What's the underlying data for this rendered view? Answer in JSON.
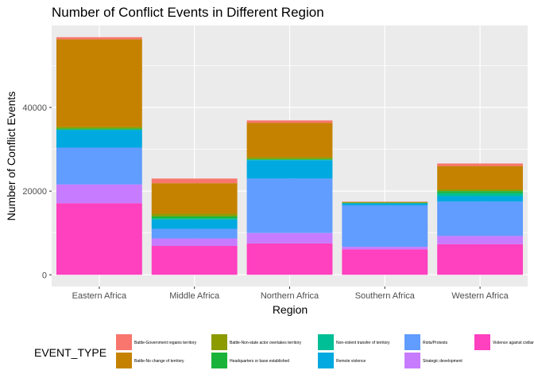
{
  "chart_data": {
    "type": "bar",
    "stacked": true,
    "title": "Number of Conflict Events in Different Region",
    "xlabel": "Region",
    "ylabel": "Number of Conflict Events",
    "ylim": [
      0,
      60000
    ],
    "yticks": [
      0,
      20000,
      40000
    ],
    "grid": true,
    "legend_position": "bottom",
    "legend_title": "EVENT_TYPE",
    "categories": [
      "Eastern Africa",
      "Middle Africa",
      "Northern Africa",
      "Southern Africa",
      "Western Africa"
    ],
    "series": [
      {
        "name": "Violence against civilians",
        "color": "#FF40BF",
        "values": [
          17100,
          6900,
          7500,
          6100,
          7300
        ]
      },
      {
        "name": "Strategic development",
        "color": "#C77CFF",
        "values": [
          4500,
          1800,
          2500,
          600,
          2000
        ]
      },
      {
        "name": "Riots/Protests",
        "color": "#619CFF",
        "values": [
          8800,
          2300,
          13000,
          9900,
          8200
        ]
      },
      {
        "name": "Remote violence",
        "color": "#00A9E0",
        "values": [
          4200,
          2200,
          4400,
          500,
          1300
        ]
      },
      {
        "name": "Non-violent transfer of territory",
        "color": "#00BE96",
        "values": [
          100,
          300,
          100,
          0,
          700
        ]
      },
      {
        "name": "Headquarters or base established",
        "color": "#1AB33A",
        "values": [
          300,
          500,
          200,
          100,
          500
        ]
      },
      {
        "name": "Battle-Non-state actor overtakes territory",
        "color": "#8C9B00",
        "values": [
          400,
          600,
          400,
          200,
          400
        ]
      },
      {
        "name": "Battle-No change of territory",
        "color": "#C58200",
        "values": [
          20900,
          7300,
          8200,
          0,
          5600
        ]
      },
      {
        "name": "Battle-Government regains territory",
        "color": "#F8766D",
        "values": [
          500,
          1100,
          600,
          100,
          600
        ]
      }
    ],
    "legend_order": [
      "Battle-Government regains territory",
      "Battle-No change of territory",
      "Battle-Non-state actor overtakes territory",
      "Headquarters or base established",
      "Non-violent transfer of territory",
      "Remote violence",
      "Riots/Protests",
      "Strategic development",
      "Violence against civilians"
    ]
  }
}
